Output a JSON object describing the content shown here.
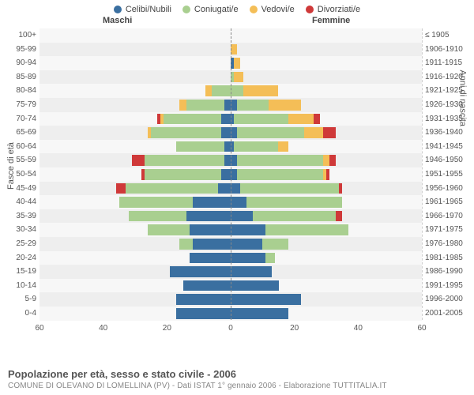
{
  "legend": {
    "items": [
      {
        "label": "Celibi/Nubili",
        "color": "#3a6fa0"
      },
      {
        "label": "Coniugati/e",
        "color": "#a9cf90"
      },
      {
        "label": "Vedovi/e",
        "color": "#f4be57"
      },
      {
        "label": "Divorziati/e",
        "color": "#cf3939"
      }
    ]
  },
  "headers": {
    "male": "Maschi",
    "female": "Femmine"
  },
  "axis": {
    "left_title": "Fasce di età",
    "right_title": "Anni di nascita",
    "xmax": 60,
    "xticks": [
      60,
      40,
      20,
      0,
      20,
      40,
      60
    ]
  },
  "plot": {
    "background": "#f7f7f7",
    "alt_row_bg": "#eeeeee",
    "grid_color": "#cfcfcf",
    "center_color": "#888888",
    "row_height": 17.6
  },
  "footer": {
    "title": "Popolazione per età, sesso e stato civile - 2006",
    "subtitle": "COMUNE DI OLEVANO DI LOMELLINA (PV) - Dati ISTAT 1° gennaio 2006 - Elaborazione TUTTITALIA.IT"
  },
  "rows": [
    {
      "age": "100+",
      "birth": "≤ 1905",
      "m": [
        0,
        0,
        0,
        0
      ],
      "f": [
        0,
        0,
        0,
        0
      ]
    },
    {
      "age": "95-99",
      "birth": "1906-1910",
      "m": [
        0,
        0,
        0,
        0
      ],
      "f": [
        0,
        0,
        2,
        0
      ]
    },
    {
      "age": "90-94",
      "birth": "1911-1915",
      "m": [
        0,
        0,
        0,
        0
      ],
      "f": [
        1,
        0,
        2,
        0
      ]
    },
    {
      "age": "85-89",
      "birth": "1916-1920",
      "m": [
        0,
        0,
        0,
        0
      ],
      "f": [
        0,
        1,
        3,
        0
      ]
    },
    {
      "age": "80-84",
      "birth": "1921-1925",
      "m": [
        0,
        6,
        2,
        0
      ],
      "f": [
        0,
        4,
        11,
        0
      ]
    },
    {
      "age": "75-79",
      "birth": "1926-1930",
      "m": [
        2,
        12,
        2,
        0
      ],
      "f": [
        2,
        10,
        10,
        0
      ]
    },
    {
      "age": "70-74",
      "birth": "1931-1935",
      "m": [
        3,
        18,
        1,
        1
      ],
      "f": [
        1,
        17,
        8,
        2
      ]
    },
    {
      "age": "65-69",
      "birth": "1936-1940",
      "m": [
        3,
        22,
        1,
        0
      ],
      "f": [
        2,
        21,
        6,
        4
      ]
    },
    {
      "age": "60-64",
      "birth": "1941-1945",
      "m": [
        2,
        15,
        0,
        0
      ],
      "f": [
        1,
        14,
        3,
        0
      ]
    },
    {
      "age": "55-59",
      "birth": "1946-1950",
      "m": [
        2,
        25,
        0,
        4
      ],
      "f": [
        2,
        27,
        2,
        2
      ]
    },
    {
      "age": "50-54",
      "birth": "1951-1955",
      "m": [
        3,
        24,
        0,
        1
      ],
      "f": [
        2,
        27,
        1,
        1
      ]
    },
    {
      "age": "45-49",
      "birth": "1956-1960",
      "m": [
        4,
        29,
        0,
        3
      ],
      "f": [
        3,
        31,
        0,
        1
      ]
    },
    {
      "age": "40-44",
      "birth": "1961-1965",
      "m": [
        12,
        23,
        0,
        0
      ],
      "f": [
        5,
        30,
        0,
        0
      ]
    },
    {
      "age": "35-39",
      "birth": "1966-1970",
      "m": [
        14,
        18,
        0,
        0
      ],
      "f": [
        7,
        26,
        0,
        2
      ]
    },
    {
      "age": "30-34",
      "birth": "1971-1975",
      "m": [
        13,
        13,
        0,
        0
      ],
      "f": [
        11,
        26,
        0,
        0
      ]
    },
    {
      "age": "25-29",
      "birth": "1976-1980",
      "m": [
        12,
        4,
        0,
        0
      ],
      "f": [
        10,
        8,
        0,
        0
      ]
    },
    {
      "age": "20-24",
      "birth": "1981-1985",
      "m": [
        13,
        0,
        0,
        0
      ],
      "f": [
        11,
        3,
        0,
        0
      ]
    },
    {
      "age": "15-19",
      "birth": "1986-1990",
      "m": [
        19,
        0,
        0,
        0
      ],
      "f": [
        13,
        0,
        0,
        0
      ]
    },
    {
      "age": "10-14",
      "birth": "1991-1995",
      "m": [
        15,
        0,
        0,
        0
      ],
      "f": [
        15,
        0,
        0,
        0
      ]
    },
    {
      "age": "5-9",
      "birth": "1996-2000",
      "m": [
        17,
        0,
        0,
        0
      ],
      "f": [
        22,
        0,
        0,
        0
      ]
    },
    {
      "age": "0-4",
      "birth": "2001-2005",
      "m": [
        17,
        0,
        0,
        0
      ],
      "f": [
        18,
        0,
        0,
        0
      ]
    }
  ]
}
